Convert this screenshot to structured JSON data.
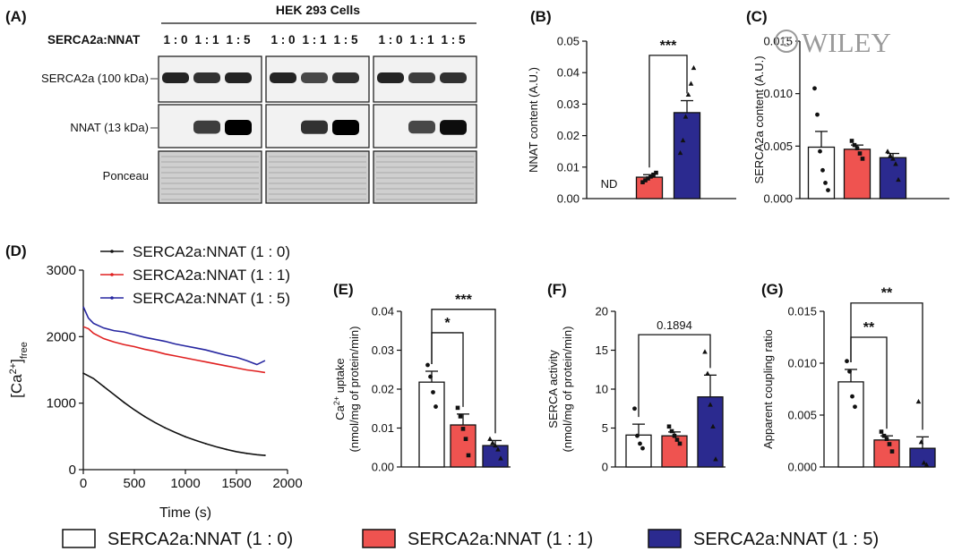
{
  "colors": {
    "white": "#ffffff",
    "red": "#ef5350",
    "blue": "#2b2a8f",
    "black": "#111111"
  },
  "legend": [
    {
      "label": "SERCA2a:NNAT (1 : 0)",
      "color": "#ffffff"
    },
    {
      "label": "SERCA2a:NNAT (1 : 1)",
      "color": "#ef5350"
    },
    {
      "label": "SERCA2a:NNAT (1 : 5)",
      "color": "#2b2a8f"
    }
  ],
  "watermark": "WILEY",
  "blot": {
    "panel_label": "(A)",
    "title": "HEK 293 Cells",
    "ratio_label": "SERCA2a:NNAT",
    "ratios": [
      "1 : 0",
      "1 : 1",
      "1 : 5",
      "1 : 0",
      "1 : 1",
      "1 : 5",
      "1 : 0",
      "1 : 1",
      "1 : 5"
    ],
    "rows": [
      "SERCA2a (100 kDa)",
      "NNAT (13 kDa)",
      "Ponceau"
    ],
    "serca_intensity": [
      0.85,
      0.8,
      0.85,
      0.85,
      0.7,
      0.8,
      0.85,
      0.75,
      0.8
    ],
    "nnat_intensity": [
      0,
      0.75,
      1.0,
      0,
      0.8,
      1.0,
      0,
      0.7,
      0.95
    ]
  },
  "chart_data": [
    {
      "id": "B",
      "panel_label": "(B)",
      "type": "bar",
      "ylabel": "NNAT content (A.U.)",
      "ylim": [
        0,
        0.05
      ],
      "yticks": [
        0,
        0.01,
        0.02,
        0.03,
        0.04,
        0.05
      ],
      "ytick_labels": [
        "0.00",
        "0.01",
        "0.02",
        "0.03",
        "0.04",
        "0.05"
      ],
      "bars": [
        {
          "value": null,
          "sem": null,
          "points": [],
          "text": "ND"
        },
        {
          "value": 0.0068,
          "sem": 0.0008,
          "points": [
            0.0052,
            0.0058,
            0.0064,
            0.007,
            0.0076,
            0.0082
          ]
        },
        {
          "value": 0.0273,
          "sem": 0.0038,
          "points": [
            0.0145,
            0.0185,
            0.026,
            0.033,
            0.0365,
            0.0415
          ]
        }
      ],
      "significance": [
        {
          "from": 1,
          "to": 2,
          "y": 0.0455,
          "label": "***"
        }
      ]
    },
    {
      "id": "C",
      "panel_label": "(C)",
      "type": "bar",
      "ylabel": "SERCA2a content (A.U.)",
      "ylim": [
        0,
        0.015
      ],
      "yticks": [
        0,
        0.005,
        0.01,
        0.015
      ],
      "ytick_labels": [
        "0.000",
        "0.005",
        "0.010",
        "0.015"
      ],
      "bars": [
        {
          "value": 0.0049,
          "sem": 0.0015,
          "points": [
            0.0105,
            0.008,
            0.0045,
            0.0027,
            0.0015,
            0.0008
          ]
        },
        {
          "value": 0.0047,
          "sem": 0.0004,
          "points": [
            0.0055,
            0.0051,
            0.0048,
            0.0043,
            0.0038
          ]
        },
        {
          "value": 0.0039,
          "sem": 0.0004,
          "points": [
            0.0045,
            0.0041,
            0.0038,
            0.0033,
            0.0018
          ]
        }
      ],
      "significance": []
    },
    {
      "id": "D",
      "panel_label": "(D)",
      "type": "line",
      "xlabel": "Time (s)",
      "ylabel_main": "[Ca",
      "ylabel_sup": "2+",
      "ylabel_end": "]",
      "ylabel_sub": "free",
      "xlim": [
        0,
        2000
      ],
      "ylim": [
        0,
        3000
      ],
      "xticks": [
        0,
        500,
        1000,
        1500,
        2000
      ],
      "xtick_labels": [
        "0",
        "500",
        "1000",
        "1500",
        "2000"
      ],
      "yticks": [
        0,
        1000,
        2000,
        3000
      ],
      "ytick_labels": [
        "0",
        "1000",
        "2000",
        "3000"
      ],
      "series": [
        {
          "name": "SERCA2a:NNAT (1 : 0)",
          "color": "#111111",
          "x": [
            0,
            100,
            200,
            300,
            400,
            500,
            600,
            700,
            800,
            900,
            1000,
            1100,
            1200,
            1300,
            1400,
            1500,
            1600,
            1700,
            1780
          ],
          "y": [
            1450,
            1370,
            1250,
            1130,
            1010,
            900,
            800,
            710,
            630,
            560,
            495,
            440,
            390,
            345,
            305,
            270,
            245,
            225,
            215
          ]
        },
        {
          "name": "SERCA2a:NNAT (1 : 1)",
          "color": "#e02020",
          "x": [
            0,
            50,
            100,
            200,
            300,
            400,
            500,
            600,
            700,
            800,
            900,
            1000,
            1100,
            1200,
            1300,
            1400,
            1500,
            1600,
            1700,
            1780
          ],
          "y": [
            2150,
            2120,
            2050,
            1970,
            1920,
            1880,
            1850,
            1810,
            1780,
            1740,
            1710,
            1680,
            1650,
            1620,
            1590,
            1560,
            1530,
            1500,
            1480,
            1460
          ]
        },
        {
          "name": "SERCA2a:NNAT (1 : 5)",
          "color": "#2626a0",
          "x": [
            0,
            50,
            100,
            200,
            300,
            400,
            500,
            600,
            700,
            800,
            900,
            1000,
            1100,
            1200,
            1300,
            1400,
            1500,
            1600,
            1700,
            1780
          ],
          "y": [
            2450,
            2280,
            2200,
            2130,
            2090,
            2070,
            2030,
            1990,
            1960,
            1930,
            1890,
            1860,
            1830,
            1800,
            1760,
            1720,
            1690,
            1640,
            1580,
            1640
          ]
        }
      ]
    },
    {
      "id": "E",
      "panel_label": "(E)",
      "type": "bar",
      "ylabel_lines": [
        "Ca",
        "(nmol/mg of protein/min)"
      ],
      "ylabel_sup": "2+",
      "ylabel_rest": " uptake",
      "ylim": [
        0,
        0.04
      ],
      "yticks": [
        0,
        0.01,
        0.02,
        0.03,
        0.04
      ],
      "ytick_labels": [
        "0.00",
        "0.01",
        "0.02",
        "0.03",
        "0.04"
      ],
      "bars": [
        {
          "value": 0.0218,
          "sem": 0.0028,
          "points": [
            0.0262,
            0.0232,
            0.0192,
            0.0155
          ]
        },
        {
          "value": 0.0108,
          "sem": 0.0028,
          "points": [
            0.0152,
            0.013,
            0.0098,
            0.0072,
            0.003
          ]
        },
        {
          "value": 0.0055,
          "sem": 0.0013,
          "points": [
            0.0072,
            0.0062,
            0.0055,
            0.0045,
            0.0022
          ]
        }
      ],
      "significance": [
        {
          "from": 0,
          "to": 1,
          "y": 0.0345,
          "label": "*"
        },
        {
          "from": 0,
          "to": 2,
          "y": 0.0405,
          "label": "***"
        }
      ]
    },
    {
      "id": "F",
      "panel_label": "(F)",
      "type": "bar",
      "ylabel_lines": [
        "SERCA activity",
        "(nmol/mg of protein/min)"
      ],
      "ylim": [
        0,
        20
      ],
      "yticks": [
        0,
        5,
        10,
        15,
        20
      ],
      "ytick_labels": [
        "0",
        "5",
        "10",
        "15",
        "20"
      ],
      "bars": [
        {
          "value": 4.1,
          "sem": 1.4,
          "points": [
            7.5,
            4.0,
            3.0,
            2.4
          ]
        },
        {
          "value": 4.0,
          "sem": 0.5,
          "points": [
            5.2,
            4.6,
            4.0,
            3.5,
            3.0
          ]
        },
        {
          "value": 9.0,
          "sem": 2.8,
          "points": [
            14.8,
            12.0,
            8.0,
            5.2,
            1.0
          ]
        }
      ],
      "significance": [
        {
          "from": 0,
          "to": 2,
          "y": 17.0,
          "label": "0.1894",
          "type": "text"
        }
      ]
    },
    {
      "id": "G",
      "panel_label": "(G)",
      "type": "bar",
      "ylabel": "Apparent coupling ratio",
      "ylim": [
        0,
        0.015
      ],
      "yticks": [
        0,
        0.005,
        0.01,
        0.015
      ],
      "ytick_labels": [
        "0.000",
        "0.005",
        "0.010",
        "0.015"
      ],
      "bars": [
        {
          "value": 0.0082,
          "sem": 0.0012,
          "points": [
            0.0102,
            0.0092,
            0.0068,
            0.0058
          ]
        },
        {
          "value": 0.0026,
          "sem": 0.0004,
          "points": [
            0.0034,
            0.003,
            0.0027,
            0.0022,
            0.0015
          ]
        },
        {
          "value": 0.0018,
          "sem": 0.0011,
          "points": [
            0.0063,
            0.0024,
            0.0004,
            0.0002
          ]
        }
      ],
      "significance": [
        {
          "from": 0,
          "to": 1,
          "y": 0.0125,
          "label": "**"
        },
        {
          "from": 0,
          "to": 2,
          "y": 0.0158,
          "label": "**"
        }
      ]
    }
  ]
}
